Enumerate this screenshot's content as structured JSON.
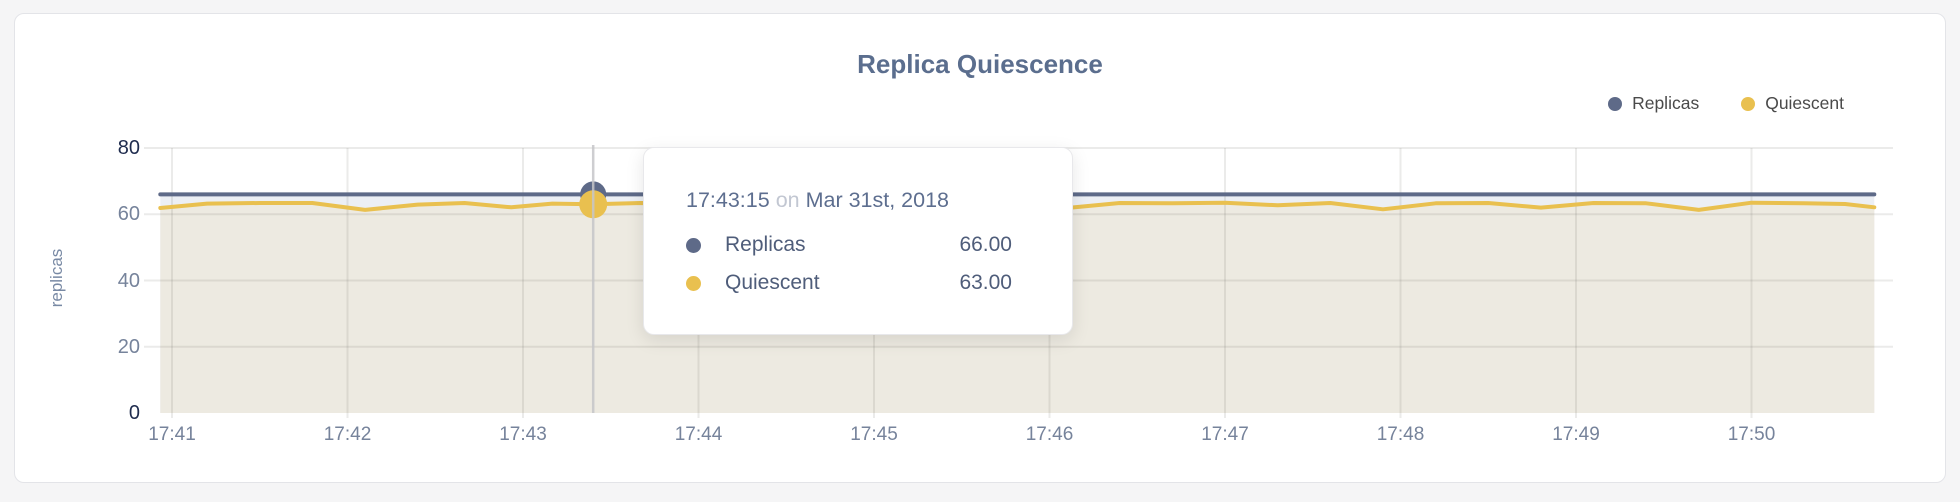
{
  "header": {
    "title": "Replica Quiescence"
  },
  "legend": {
    "items": [
      {
        "label": "Replicas",
        "color": "#5e6a88"
      },
      {
        "label": "Quiescent",
        "color": "#e9c04f"
      }
    ]
  },
  "y_axis": {
    "label": "replicas"
  },
  "tooltip": {
    "time": "17:43:15",
    "preposition": "on",
    "date": "Mar 31st, 2018",
    "rows": [
      {
        "label": "Replicas",
        "value": "66.00",
        "color": "#5e6a88"
      },
      {
        "label": "Quiescent",
        "value": "63.00",
        "color": "#e9c04f"
      }
    ]
  },
  "chart_data": {
    "type": "line",
    "title": "Replica Quiescence",
    "xlabel": "",
    "ylabel": "replicas",
    "ylim": [
      0,
      80
    ],
    "y_ticks": [
      0,
      20,
      40,
      60,
      80
    ],
    "x_ticks": [
      "17:41",
      "17:42",
      "17:43",
      "17:44",
      "17:45",
      "17:46",
      "17:47",
      "17:48",
      "17:49",
      "17:50"
    ],
    "x_unit": "seconds after 17:41:00",
    "grid": true,
    "legend_position": "top-right",
    "colors": {
      "grid": "rgba(100,100,90,0.13)",
      "hover_line": "#c6c6c9"
    },
    "series": [
      {
        "name": "Replicas",
        "color": "#5e6a88",
        "area_color": "#eceff4",
        "points": [
          [
            -4,
            66
          ],
          [
            582,
            66
          ]
        ]
      },
      {
        "name": "Quiescent",
        "color": "#e9c04f",
        "area_color": "#edeae1",
        "points": [
          [
            -4,
            61.9
          ],
          [
            12,
            63.2
          ],
          [
            30,
            63.4
          ],
          [
            48,
            63.4
          ],
          [
            66,
            61.3
          ],
          [
            84,
            62.9
          ],
          [
            100,
            63.4
          ],
          [
            116,
            62.1
          ],
          [
            130,
            63.2
          ],
          [
            144,
            63.0
          ],
          [
            160,
            63.4
          ],
          [
            176,
            63.3
          ],
          [
            192,
            62.0
          ],
          [
            208,
            63.3
          ],
          [
            224,
            63.4
          ],
          [
            240,
            63.3
          ],
          [
            256,
            62.2
          ],
          [
            272,
            63.2
          ],
          [
            288,
            63.4
          ],
          [
            306,
            61.9
          ],
          [
            324,
            63.4
          ],
          [
            342,
            63.3
          ],
          [
            360,
            63.5
          ],
          [
            378,
            62.7
          ],
          [
            396,
            63.4
          ],
          [
            414,
            61.5
          ],
          [
            432,
            63.3
          ],
          [
            450,
            63.4
          ],
          [
            468,
            62.0
          ],
          [
            486,
            63.4
          ],
          [
            504,
            63.3
          ],
          [
            522,
            61.3
          ],
          [
            540,
            63.5
          ],
          [
            558,
            63.3
          ],
          [
            572,
            63.1
          ],
          [
            582,
            62.1
          ]
        ]
      }
    ],
    "hover": {
      "time": "17:43:15",
      "date": "Mar 31st, 2018",
      "values": {
        "Replicas": 66.0,
        "Quiescent": 63.0
      }
    }
  }
}
